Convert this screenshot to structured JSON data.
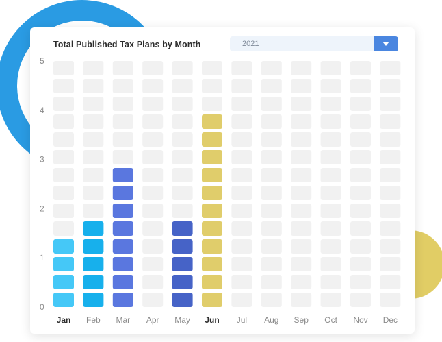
{
  "chart_data": {
    "type": "bar",
    "title": "Total Published Tax Plans by Month",
    "categories": [
      "Jan",
      "Feb",
      "Mar",
      "Apr",
      "May",
      "Jun",
      "Jul",
      "Aug",
      "Sep",
      "Oct",
      "Nov",
      "Dec"
    ],
    "values": [
      1.5,
      2.0,
      3.0,
      0,
      2.0,
      4.0,
      0,
      0,
      0,
      0,
      0,
      0
    ],
    "highlighted_categories": [
      "Jan",
      "Jun"
    ],
    "yticks": [
      0,
      1,
      2,
      3,
      4,
      5
    ],
    "ylim": [
      0,
      5
    ],
    "cells_per_unit": 2.667,
    "colors": {
      "Jan": "#45c8f7",
      "Feb": "#17b0ec",
      "Mar": "#5a77df",
      "May": "#4663c7",
      "Jun": "#e0cd6b",
      "empty": "#f1f1f1"
    },
    "grid": false,
    "legend": "none"
  },
  "year_select": {
    "selected": "2021"
  },
  "decorations": {
    "ring_color": "#2a9be3",
    "dot_color": "#e1cd65"
  }
}
